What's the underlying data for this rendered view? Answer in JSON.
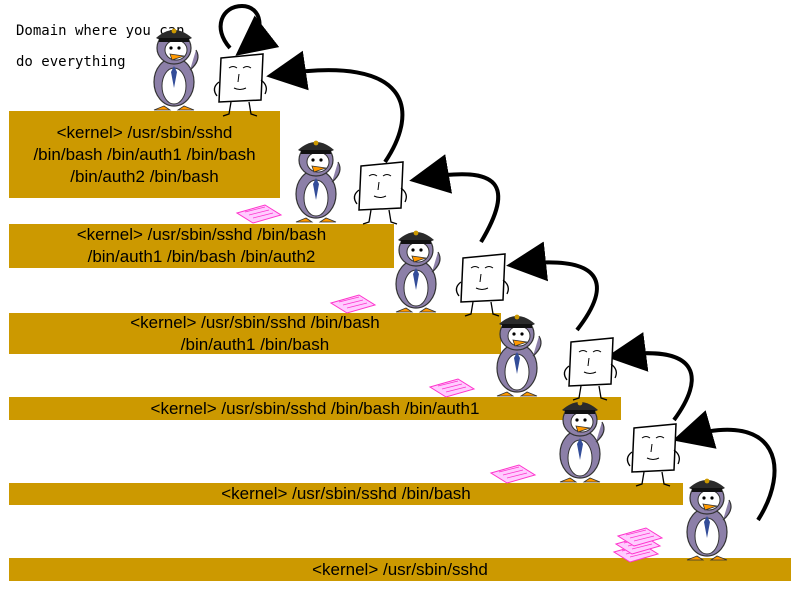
{
  "annotation": {
    "line1": "Domain where you can",
    "line2": "do everything"
  },
  "steps": [
    {
      "lines": [
        "<kernel> /usr/sbin/sshd",
        "/bin/bash /bin/auth1 /bin/bash",
        "/bin/auth2 /bin/bash"
      ]
    },
    {
      "lines": [
        "<kernel> /usr/sbin/sshd /bin/bash",
        "/bin/auth1 /bin/bash /bin/auth2"
      ]
    },
    {
      "lines": [
        "<kernel> /usr/sbin/sshd /bin/bash",
        "/bin/auth1 /bin/bash"
      ]
    },
    {
      "lines": [
        "<kernel> /usr/sbin/sshd /bin/bash /bin/auth1"
      ]
    },
    {
      "lines": [
        "<kernel> /usr/sbin/sshd /bin/bash"
      ]
    },
    {
      "lines": [
        "<kernel> /usr/sbin/sshd"
      ]
    }
  ],
  "colors": {
    "step_fill": "#cc9900",
    "penguin_body": "#8c7fa8",
    "paper_pink": "#ff66cc",
    "arrow": "#000000"
  },
  "icons": [
    "penguin-officer-icon",
    "document-character-icon",
    "pink-paper-icon",
    "curved-arrow-icon",
    "loop-arrow-icon"
  ]
}
